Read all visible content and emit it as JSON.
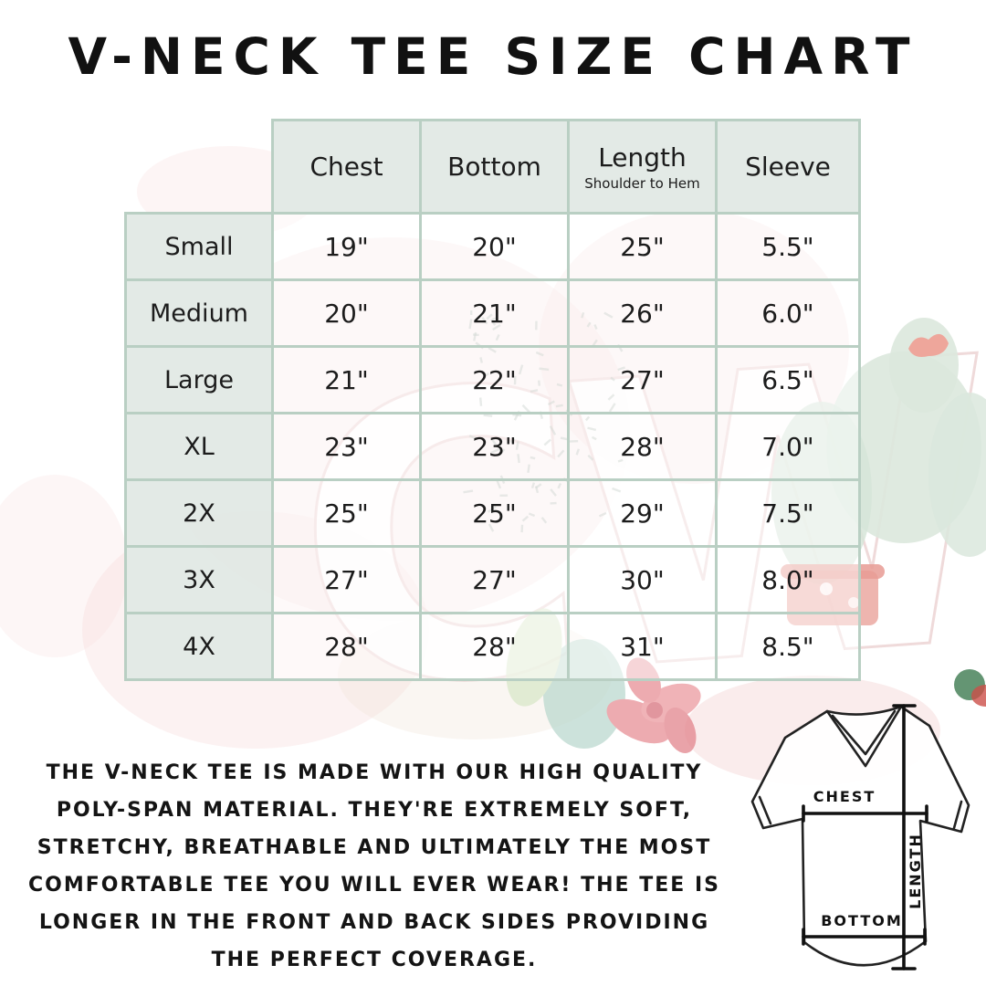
{
  "title": "V-NECK TEE SIZE CHART",
  "table": {
    "columns": [
      "Chest",
      "Bottom",
      "Length",
      "Sleeve"
    ],
    "length_subtitle": "Shoulder to Hem",
    "rows": [
      {
        "label": "Small",
        "values": [
          "19\"",
          "20\"",
          "25\"",
          "5.5\""
        ]
      },
      {
        "label": "Medium",
        "values": [
          "20\"",
          "21\"",
          "26\"",
          "6.0\""
        ]
      },
      {
        "label": "Large",
        "values": [
          "21\"",
          "22\"",
          "27\"",
          "6.5\""
        ]
      },
      {
        "label": "XL",
        "values": [
          "23\"",
          "23\"",
          "28\"",
          "7.0\""
        ]
      },
      {
        "label": "2X",
        "values": [
          "25\"",
          "25\"",
          "29\"",
          "7.5\""
        ]
      },
      {
        "label": "3X",
        "values": [
          "27\"",
          "27\"",
          "30\"",
          "8.0\""
        ]
      },
      {
        "label": "4X",
        "values": [
          "28\"",
          "28\"",
          "31\"",
          "8.5\""
        ]
      }
    ]
  },
  "description": {
    "lines": [
      "THE V-NECK TEE IS MADE WITH OUR HIGH QUALITY",
      "POLY-SPAN MATERIAL. THEY'RE EXTREMELY SOFT,",
      "STRETCHY, BREATHABLE AND ULTIMATELY THE MOST",
      "COMFORTABLE TEE YOU WILL EVER WEAR! THE TEE IS",
      "LONGER IN THE FRONT AND BACK SIDES PROVIDING",
      "THE PERFECT COVERAGE."
    ]
  },
  "diagram": {
    "chest_label": "CHEST",
    "bottom_label": "BOTTOM",
    "length_label": "LENGTH"
  },
  "watermark": {
    "letters": "CW"
  },
  "colors": {
    "table_border": "#b9cfc3",
    "header_fill": "#e1e9e4",
    "text": "#1c1c1c",
    "watermark_pink": "#f5dcdc",
    "watermark_green": "#dbe8dd"
  }
}
